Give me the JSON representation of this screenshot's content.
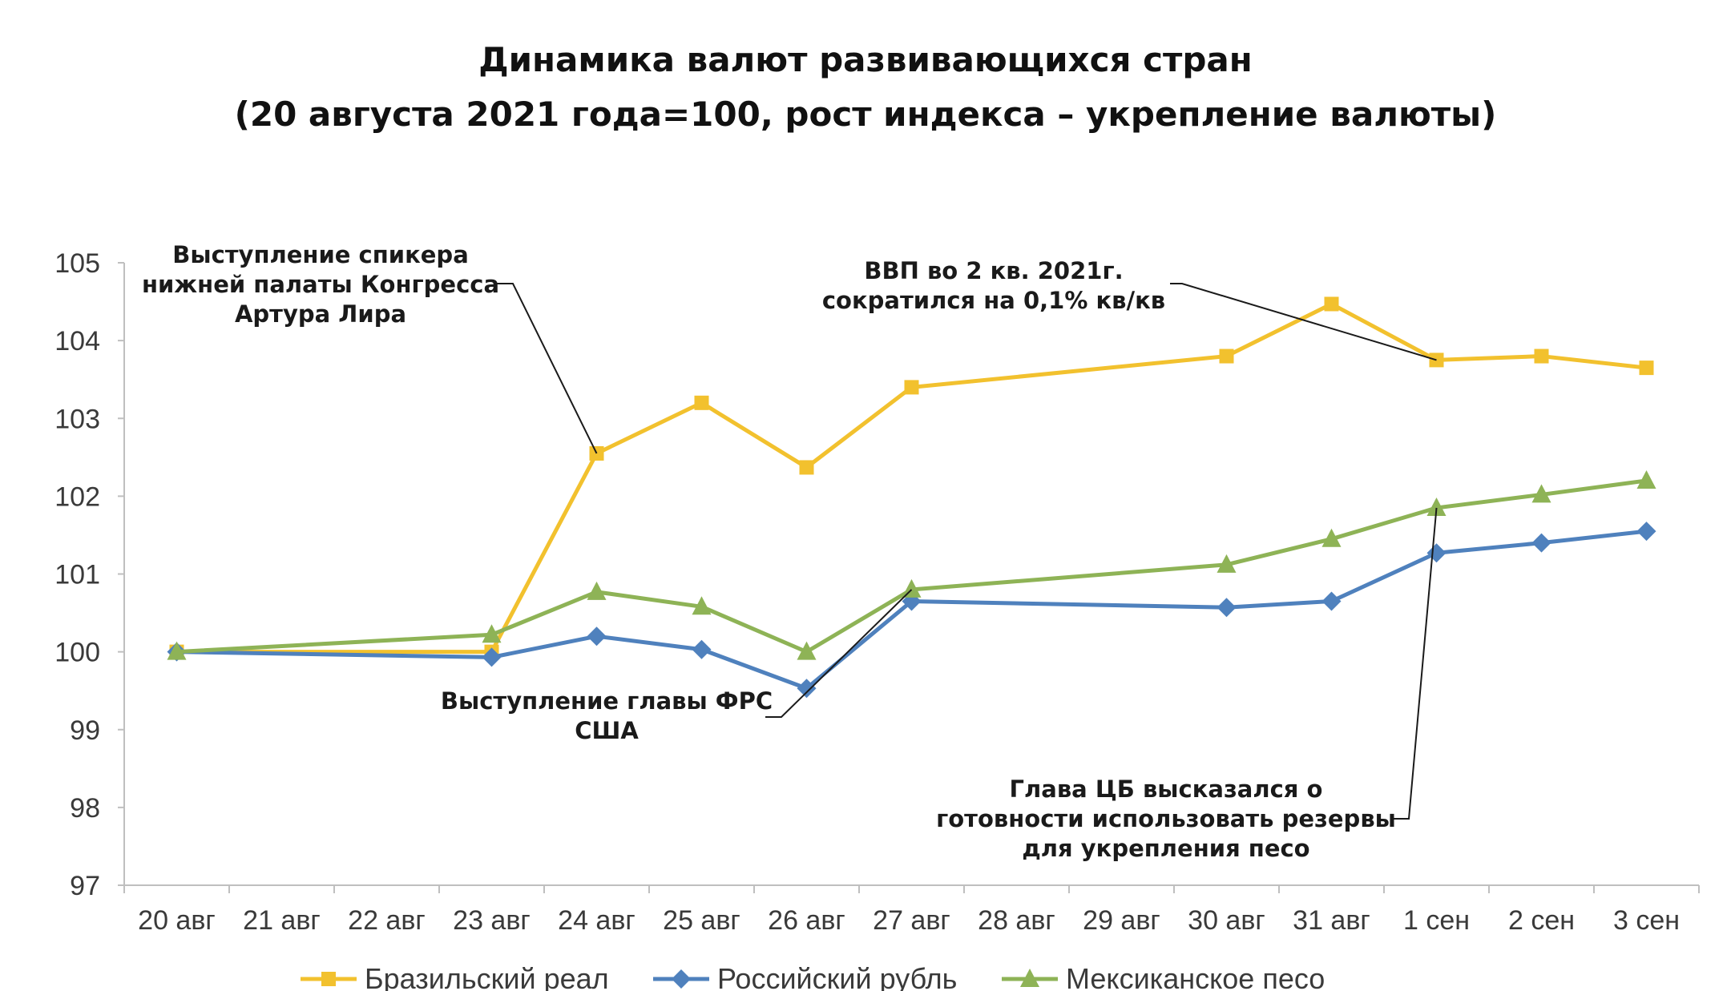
{
  "chart_data": {
    "type": "line",
    "title": "Динамика валют развивающихся стран",
    "subtitle": "(20 августа 2021 года=100, рост индекса – укрепление валюты)",
    "categories": [
      "20 авг",
      "21 авг",
      "22 авг",
      "23 авг",
      "24 авг",
      "25 авг",
      "26 авг",
      "27 авг",
      "28 авг",
      "29 авг",
      "30 авг",
      "31 авг",
      "1 сен",
      "2 сен",
      "3 сен"
    ],
    "y_ticks": [
      "97",
      "98",
      "99",
      "100",
      "101",
      "102",
      "103",
      "104",
      "105"
    ],
    "ylim": [
      97,
      105
    ],
    "grid": false,
    "legend_position": "bottom",
    "series": [
      {
        "name": "Бразильский реал",
        "color": "#f2c12e",
        "marker": "square",
        "values": [
          100,
          null,
          null,
          100.0,
          102.55,
          103.2,
          102.37,
          103.4,
          null,
          null,
          103.8,
          104.47,
          103.75,
          103.8,
          103.65
        ]
      },
      {
        "name": "Российский рубль",
        "color": "#4f81bd",
        "marker": "diamond",
        "values": [
          100,
          null,
          null,
          99.93,
          100.2,
          100.03,
          99.53,
          100.65,
          null,
          null,
          100.57,
          100.65,
          101.27,
          101.4,
          101.55
        ]
      },
      {
        "name": "Мексиканское песо",
        "color": "#8eb356",
        "marker": "triangle",
        "values": [
          100,
          null,
          null,
          100.22,
          100.77,
          100.58,
          100.0,
          100.8,
          null,
          null,
          101.12,
          101.45,
          101.85,
          102.02,
          102.2
        ]
      }
    ],
    "annotations": [
      {
        "lines": [
          "Выступление спикера",
          "нижней палаты Конгресса",
          "Артура Лира"
        ],
        "category": "24 авг",
        "series": "Бразильский реал"
      },
      {
        "lines": [
          "ВВП во 2 кв. 2021г.",
          "сократился на 0,1% кв/кв"
        ],
        "category": "1 сен",
        "series": "Бразильский реал"
      },
      {
        "lines": [
          "Выступление главы ФРС",
          "США"
        ],
        "category": "27 авг",
        "series": "Мексиканское песо"
      },
      {
        "lines": [
          "Глава ЦБ высказался о",
          "готовности использовать резервы",
          "для укрепления песо"
        ],
        "category": "1 сен",
        "series": "Мексиканское песо"
      }
    ]
  }
}
